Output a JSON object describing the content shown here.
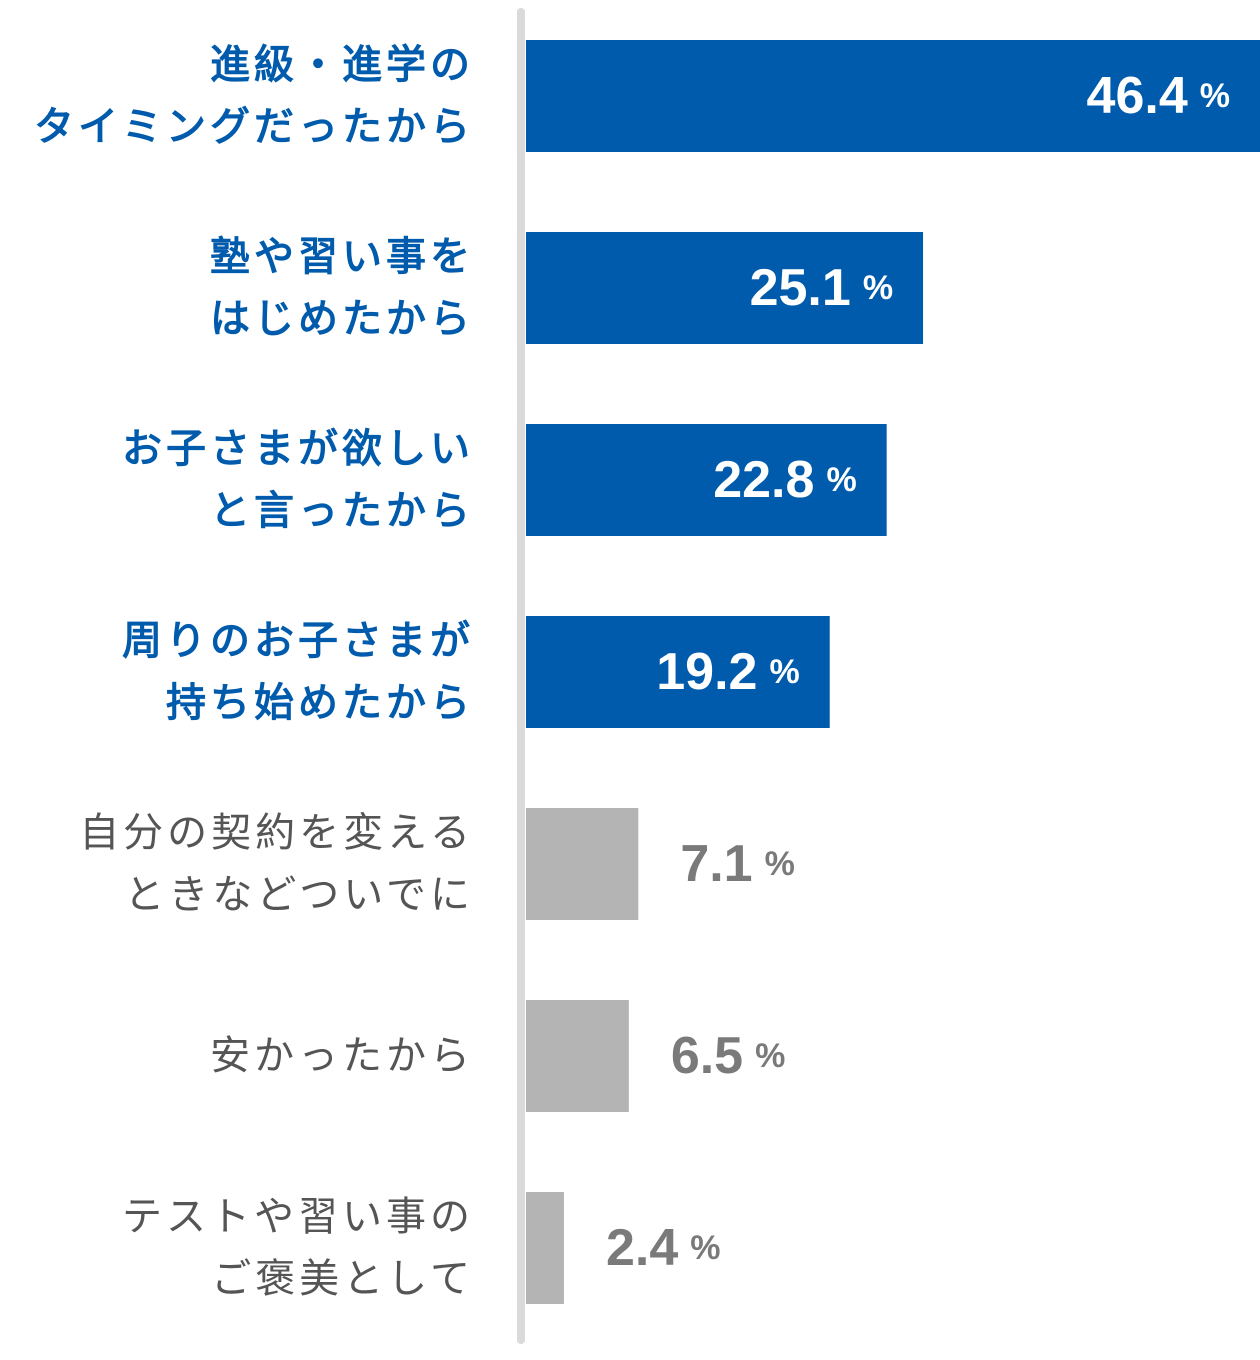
{
  "chart_data": {
    "type": "bar",
    "orientation": "horizontal",
    "categories": [
      [
        "進級・進学の",
        "タイミングだったから"
      ],
      [
        "塾や習い事を",
        "はじめたから"
      ],
      [
        "お子さまが欲しい",
        "と言ったから"
      ],
      [
        "周りのお子さまが",
        "持ち始めたから"
      ],
      [
        "自分の契約を変える",
        "ときなどついでに"
      ],
      [
        "安かったから"
      ],
      [
        "テストや習い事の",
        "ご褒美として"
      ]
    ],
    "values": [
      46.4,
      25.1,
      22.8,
      19.2,
      7.1,
      6.5,
      2.4
    ],
    "value_labels": [
      "46.4",
      "25.1",
      "22.8",
      "19.2",
      "7.1",
      "6.5",
      "2.4"
    ],
    "unit": "%",
    "highlighted": [
      true,
      true,
      true,
      true,
      false,
      false,
      false
    ],
    "xlim": [
      0,
      46.4
    ],
    "grid": false,
    "legend": "none",
    "colors": {
      "highlight_bar": "#005bac",
      "highlight_label": "#005bac",
      "highlight_value": "#ffffff",
      "muted_bar": "#b4b4b4",
      "muted_label": "#555555",
      "muted_value": "#7a7a7a",
      "axis": "#dadada"
    }
  }
}
